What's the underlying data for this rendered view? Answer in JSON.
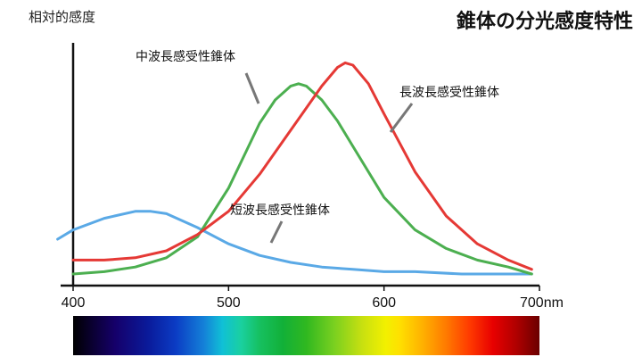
{
  "header": {
    "y_axis_label": "相対的感度",
    "title": "錐体の分光感度特性"
  },
  "spectrum_bar": {
    "range_nm": [
      400,
      700
    ]
  },
  "chart_data": {
    "type": "line",
    "title": "錐体の分光感度特性",
    "ylabel": "相対的感度",
    "xlabel": "",
    "xlim": [
      400,
      700
    ],
    "ylim": [
      0,
      1
    ],
    "x_ticks": [
      {
        "value": 400,
        "label": "400"
      },
      {
        "value": 500,
        "label": "500"
      },
      {
        "value": 600,
        "label": "600"
      },
      {
        "value": 700,
        "label": "700nm"
      }
    ],
    "y_ticks": [],
    "grid": false,
    "series": [
      {
        "name": "短波長感受性錐体",
        "color": "#5aa9e6",
        "x": [
          390,
          400,
          420,
          440,
          450,
          460,
          480,
          500,
          520,
          540,
          560,
          580,
          600,
          620,
          650,
          680,
          695
        ],
        "y": [
          0.2,
          0.24,
          0.29,
          0.32,
          0.32,
          0.31,
          0.25,
          0.18,
          0.13,
          0.1,
          0.08,
          0.07,
          0.06,
          0.06,
          0.05,
          0.05,
          0.05
        ]
      },
      {
        "name": "中波長感受性錐体",
        "color": "#4caf50",
        "x": [
          400,
          420,
          440,
          460,
          480,
          500,
          510,
          520,
          530,
          540,
          545,
          550,
          560,
          570,
          580,
          600,
          620,
          640,
          660,
          680,
          695
        ],
        "y": [
          0.05,
          0.06,
          0.08,
          0.12,
          0.21,
          0.42,
          0.56,
          0.7,
          0.8,
          0.86,
          0.87,
          0.86,
          0.8,
          0.71,
          0.6,
          0.38,
          0.24,
          0.16,
          0.11,
          0.08,
          0.05
        ]
      },
      {
        "name": "長波長感受性錐体",
        "color": "#e53935",
        "x": [
          400,
          420,
          440,
          460,
          480,
          500,
          520,
          540,
          560,
          570,
          575,
          580,
          590,
          600,
          620,
          640,
          660,
          680,
          695
        ],
        "y": [
          0.11,
          0.11,
          0.12,
          0.15,
          0.22,
          0.32,
          0.48,
          0.67,
          0.86,
          0.94,
          0.96,
          0.95,
          0.87,
          0.74,
          0.49,
          0.3,
          0.18,
          0.11,
          0.07
        ]
      }
    ],
    "annotations": [
      {
        "text": "中波長感受性錐体",
        "series": "中波長感受性錐体"
      },
      {
        "text": "長波長感受性錐体",
        "series": "長波長感受性錐体"
      },
      {
        "text": "短波長感受性錐体",
        "series": "短波長感受性錐体"
      }
    ]
  }
}
